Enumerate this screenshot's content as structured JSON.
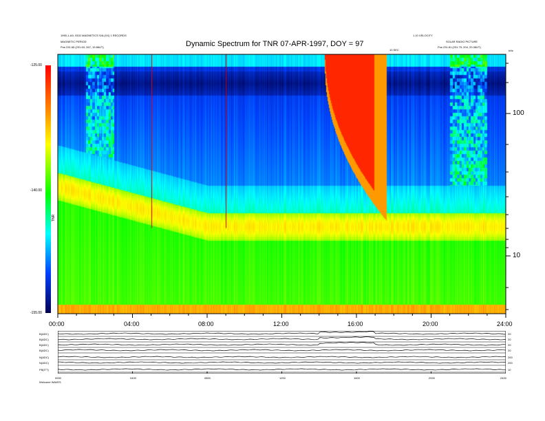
{
  "chart_data": [
    {
      "type": "heatmap",
      "title": "Dynamic Spectrum for TNR 07-APR-1997, DOY = 97",
      "header_left": [
        "1990-1-A9, GDG MAGNETICS S/A (XX) 1 RECORDS",
        "MAGNETIC PERIOD",
        "Pos   231.65 (231.63, 267, 19.86UT)"
      ],
      "header_right": [
        "1.10 VELOCITY",
        "SOLAR RADIO PICTURE",
        "Pos   231.81 (231.75, 204, 20.06UT)"
      ],
      "mid_label": "10 SEC",
      "x_ticks": [
        "00:00",
        "04:00",
        "08:00",
        "12:00",
        "16:00",
        "20:00",
        "24:00"
      ],
      "x_range_hours": [
        0,
        24
      ],
      "colorbar": {
        "ticks": [
          "-125.00",
          "-140.00",
          "-155.00"
        ],
        "range_db": [
          -155,
          -125
        ],
        "label": "TNR"
      },
      "y_right_ticks": [
        "100",
        "10"
      ],
      "y_right_unit": "kHz",
      "y_right_range_khz": [
        4,
        250
      ],
      "grid": false,
      "features": {
        "type_iii_burst": {
          "start_hour": 14.3,
          "end_hour": 17.6,
          "start_freq_khz": 250,
          "end_freq_khz": 22
        },
        "plasma_line_start_khz": 38,
        "plasma_line_end_khz": 20,
        "vertical_spike_hours": [
          5.0,
          9.0
        ]
      }
    },
    {
      "type": "line",
      "panels": [
        {
          "label": "B(ADC)",
          "right": "20"
        },
        {
          "label": "B(ADC)",
          "right": "20"
        },
        {
          "label": "B(ADC)",
          "right": "20"
        },
        {
          "label": "B(ADC)",
          "right": "20"
        },
        {
          "label": "N(ADC)",
          "right": "200"
        },
        {
          "label": "N(ADC)",
          "right": "200"
        },
        {
          "label": "FB(ITT)",
          "right": "10"
        }
      ],
      "x_ticks": [
        "0000",
        "0400",
        "0800",
        "1200",
        "1600",
        "2000",
        "2400"
      ],
      "footer": "Welcome WAVES"
    }
  ]
}
